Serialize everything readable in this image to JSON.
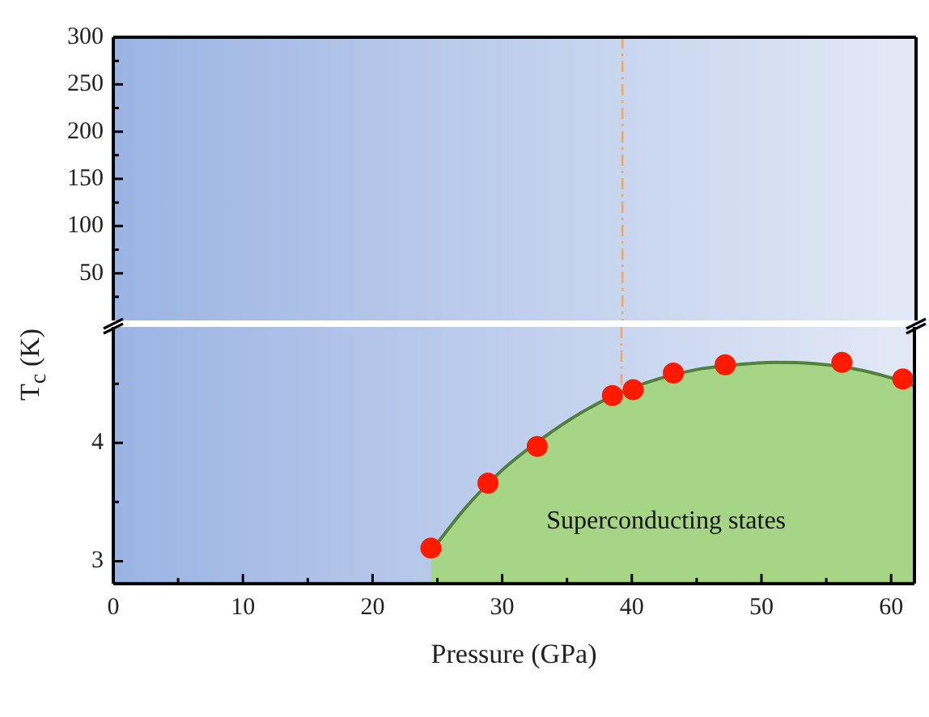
{
  "chart_data": [
    {
      "type": "scatter",
      "ylabel": "T$_{c}$ (K)",
      "xlim": [
        0,
        61.8
      ],
      "ylim": [
        0,
        300
      ],
      "yticks": [
        50,
        100,
        150,
        200,
        250,
        300,
        {
          "value": 25,
          "label": null
        },
        {
          "value": 75,
          "label": null
        },
        {
          "value": 125,
          "label": null
        },
        {
          "value": 175,
          "label": null
        },
        {
          "value": 225,
          "label": null
        },
        {
          "value": 275,
          "label": null
        }
      ],
      "tick_labels": "y",
      "ref_lines": [
        {
          "axis": "x",
          "value": 39.2,
          "color": "#f0a868",
          "line_style": "dashed"
        }
      ]
    },
    {
      "type": "scatter",
      "xlabel": "Pressure (GPa)",
      "xlim": [
        0,
        61.8
      ],
      "ylim": [
        2.81,
        4.98
      ],
      "xticks": [
        0,
        10,
        20,
        30,
        40,
        50,
        60,
        {
          "value": 5,
          "label": null
        },
        {
          "value": 15,
          "label": null
        },
        {
          "value": 25,
          "label": null
        },
        {
          "value": 35,
          "label": null
        },
        {
          "value": 45,
          "label": null
        },
        {
          "value": 55,
          "label": null
        }
      ],
      "yticks": [
        3,
        4,
        {
          "value": 3.5,
          "label": null
        },
        {
          "value": 4.5,
          "label": null
        }
      ],
      "series": [
        {
          "type": "area",
          "color": "#a6d586",
          "x": [
            24.5,
            27,
            30,
            33,
            36,
            39,
            42,
            45,
            48,
            51,
            54,
            57,
            60,
            61.8
          ],
          "values": [
            3.08,
            3.43,
            3.77,
            4.03,
            4.25,
            4.42,
            4.54,
            4.62,
            4.66,
            4.68,
            4.67,
            4.63,
            4.55,
            4.48
          ]
        },
        {
          "type": "scatter",
          "color": "#ff1a00",
          "marker": "circle",
          "x": [
            24.5,
            28.9,
            32.7,
            38.5,
            40.1,
            43.2,
            47.2,
            56.2,
            60.9
          ],
          "values": [
            3.11,
            3.66,
            3.97,
            4.4,
            4.45,
            4.59,
            4.66,
            4.68,
            4.54
          ]
        }
      ],
      "ref_lines": [
        {
          "axis": "x",
          "value": 39.2,
          "color": "#f0a868",
          "line_style": "dashed"
        }
      ],
      "annotations": [
        "Superconducting states"
      ]
    }
  ]
}
